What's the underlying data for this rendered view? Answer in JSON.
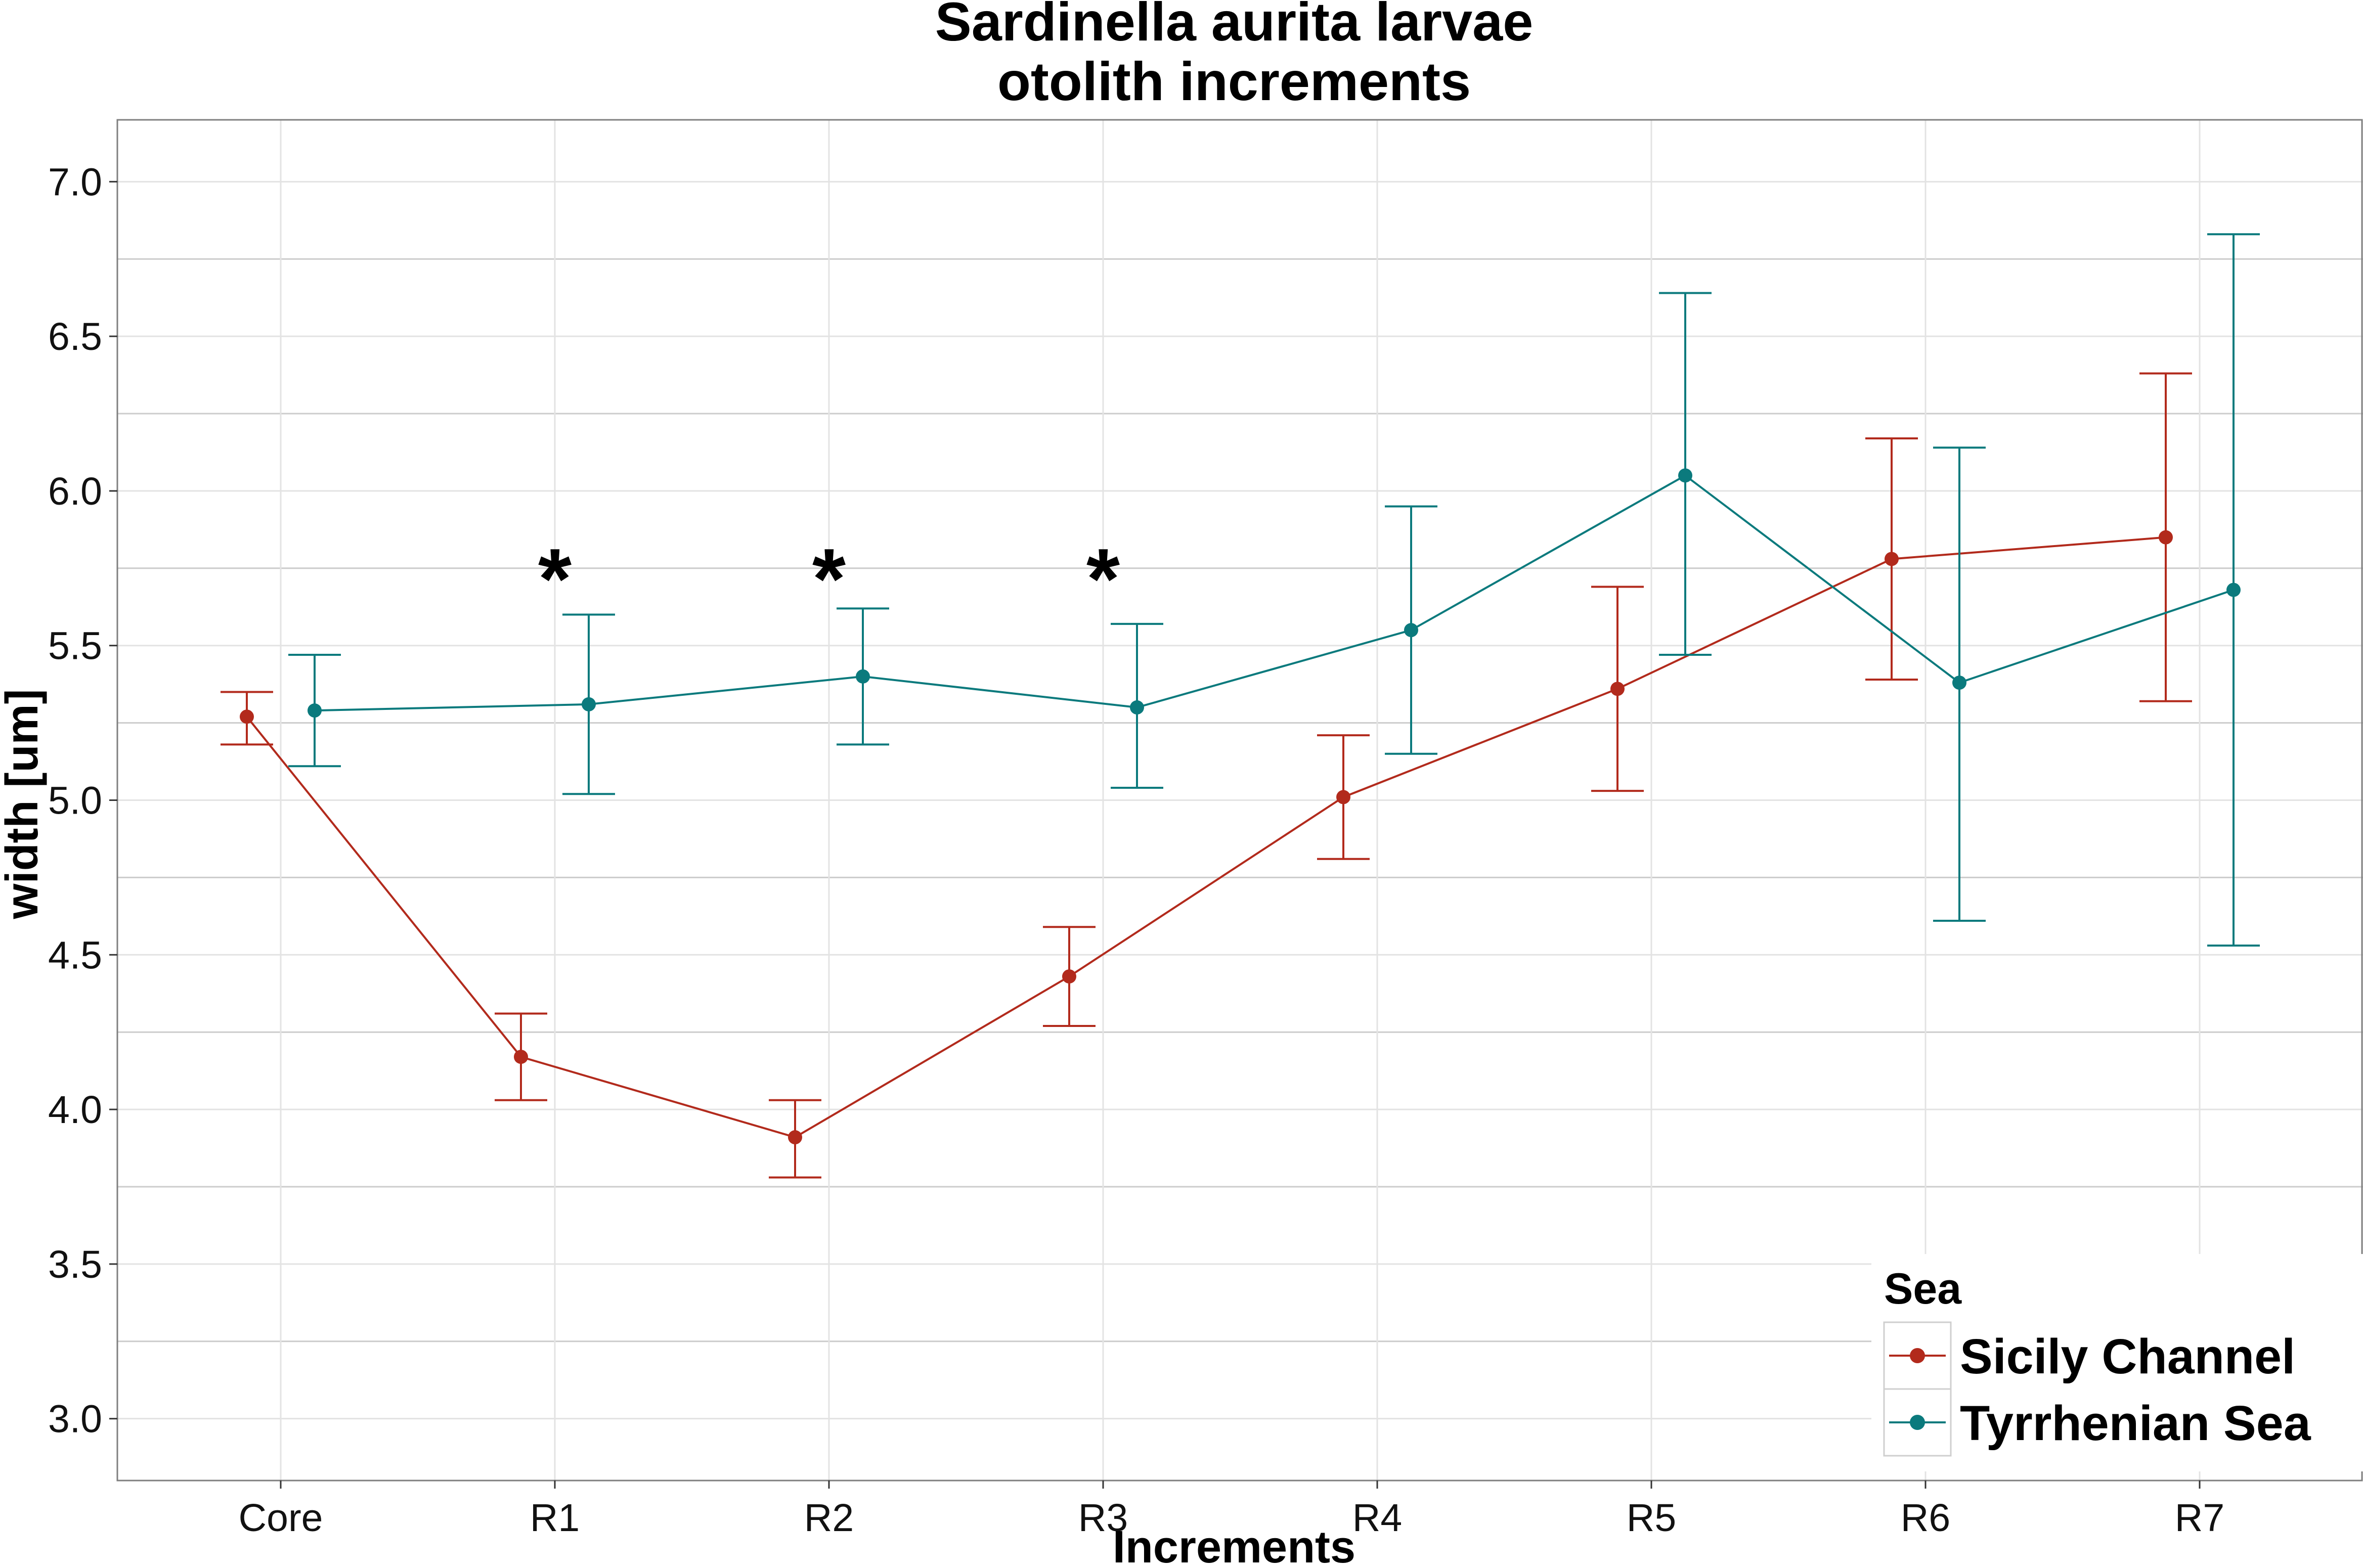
{
  "chart_data": {
    "type": "line",
    "title_lines": [
      "Sardinella aurita larvae",
      "otolith increments"
    ],
    "xlabel": "Increments",
    "ylabel": "width [um]",
    "categories": [
      "Core",
      "R1",
      "R2",
      "R3",
      "R4",
      "R5",
      "R6",
      "R7"
    ],
    "ylim": [
      2.8,
      7.2
    ],
    "yticks": [
      3.0,
      3.5,
      4.0,
      4.5,
      5.0,
      5.5,
      6.0,
      6.5,
      7.0
    ],
    "ytick_labels": [
      "3.0",
      "3.5",
      "4.0",
      "4.5",
      "5.0",
      "5.5",
      "6.0",
      "6.5",
      "7.0"
    ],
    "grid": true,
    "series": [
      {
        "name": "Sicily Channel",
        "color": "#B22A1C",
        "values": [
          5.27,
          4.17,
          3.91,
          4.43,
          5.01,
          5.36,
          5.78,
          5.85
        ],
        "lower": [
          5.18,
          4.03,
          3.78,
          4.27,
          4.81,
          5.03,
          5.39,
          5.32
        ],
        "upper": [
          5.35,
          4.31,
          4.03,
          4.59,
          5.21,
          5.69,
          6.17,
          6.38
        ]
      },
      {
        "name": "Tyrrhenian Sea",
        "color": "#0B7A7D",
        "values": [
          5.29,
          5.31,
          5.4,
          5.3,
          5.55,
          6.05,
          5.38,
          5.68
        ],
        "lower": [
          5.11,
          5.02,
          5.18,
          5.04,
          5.15,
          5.47,
          4.61,
          4.53
        ],
        "upper": [
          5.47,
          5.6,
          5.62,
          5.57,
          5.95,
          6.64,
          6.14,
          6.83
        ]
      }
    ],
    "annotations": [
      {
        "category": "R1",
        "text": "*",
        "y": 5.8
      },
      {
        "category": "R2",
        "text": "*",
        "y": 5.8
      },
      {
        "category": "R3",
        "text": "*",
        "y": 5.8
      }
    ],
    "legend": {
      "title": "Sea",
      "position": "bottom-right",
      "entries": [
        "Sicily Channel",
        "Tyrrhenian Sea"
      ]
    }
  }
}
